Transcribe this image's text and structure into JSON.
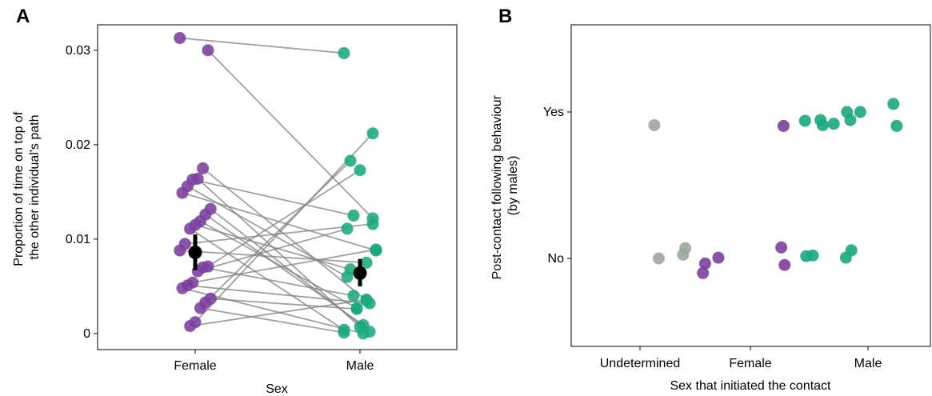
{
  "colors": {
    "Female": "#7b3f9e",
    "Male": "#1aa97f",
    "Undetermined": "#9aa89a",
    "pair_line": "#808080",
    "mean": "#000000"
  },
  "chart_data": [
    {
      "panel": "A",
      "type": "scatter",
      "xlabel": "Sex",
      "ylabel": "Proportion of time on top of the other individual's path",
      "ylabel_lines": [
        "Proportion of time on top of",
        "the other individual's path"
      ],
      "categories": [
        "Female",
        "Male"
      ],
      "ylim": [
        -0.0017,
        0.0327
      ],
      "yticks": [
        0,
        0.01,
        0.02,
        0.03
      ],
      "ytick_labels": [
        "0",
        "0.01",
        "0.02",
        "0.03"
      ],
      "grid": false,
      "pairs": [
        {
          "female": 0.0313,
          "male": 0.0297
        },
        {
          "female": 0.03,
          "male": 0.0122
        },
        {
          "female": 0.0175,
          "male": 0.0035
        },
        {
          "female": 0.0164,
          "male": 0.0007
        },
        {
          "female": 0.0163,
          "male": 0.0125
        },
        {
          "female": 0.0156,
          "male": 0.006
        },
        {
          "female": 0.0149,
          "male": 0.0088
        },
        {
          "female": 0.0132,
          "male": 0.0002
        },
        {
          "female": 0.0126,
          "male": 0.0009
        },
        {
          "female": 0.0119,
          "male": 0.0027
        },
        {
          "female": 0.0115,
          "male": 0.0068
        },
        {
          "female": 0.0111,
          "male": 0.0004
        },
        {
          "female": 0.0095,
          "male": 0.0116
        },
        {
          "female": 0.0088,
          "male": 0.0075
        },
        {
          "female": 0.0071,
          "male": 0.0173
        },
        {
          "female": 0.007,
          "male": 0.004
        },
        {
          "female": 0.0066,
          "male": 0.0111
        },
        {
          "female": 0.0054,
          "male": 0.0089
        },
        {
          "female": 0.0051,
          "male": 0.0032
        },
        {
          "female": 0.0048,
          "male": 0.0
        },
        {
          "female": 0.0037,
          "male": 0.0026
        },
        {
          "female": 0.0033,
          "male": 0.0183
        },
        {
          "female": 0.0027,
          "male": 0.0001
        },
        {
          "female": 0.0012,
          "male": 0.0212
        },
        {
          "female": 0.0008,
          "male": 0.0036
        }
      ],
      "means": [
        {
          "category": "Female",
          "mean": 0.0086,
          "low": 0.0067,
          "high": 0.0105
        },
        {
          "category": "Male",
          "mean": 0.0064,
          "low": 0.005,
          "high": 0.0079
        }
      ]
    },
    {
      "panel": "B",
      "type": "scatter",
      "xlabel": "Sex that initiated the contact",
      "ylabel": "Post-contact following behaviour (by males)",
      "ylabel_lines": [
        "Post-contact following behaviour",
        "(by males)"
      ],
      "categories": [
        "Undetermined",
        "Female",
        "Male"
      ],
      "y_categories": [
        "No",
        "Yes"
      ],
      "grid": false,
      "points": [
        {
          "category": "Undetermined",
          "response": "Yes",
          "jx": 0.13,
          "jy": -0.09
        },
        {
          "category": "Undetermined",
          "response": "No",
          "jx": 0.17,
          "jy": 0.0
        },
        {
          "category": "Undetermined",
          "response": "No",
          "jx": 0.39,
          "jy": 0.025
        },
        {
          "category": "Undetermined",
          "response": "No",
          "jx": 0.41,
          "jy": 0.07
        },
        {
          "category": "Female",
          "response": "Yes",
          "jx": 0.3,
          "jy": -0.095
        },
        {
          "category": "Female",
          "response": "No",
          "jx": -0.41,
          "jy": -0.035
        },
        {
          "category": "Female",
          "response": "No",
          "jx": -0.43,
          "jy": -0.1
        },
        {
          "category": "Female",
          "response": "No",
          "jx": -0.29,
          "jy": 0.005
        },
        {
          "category": "Female",
          "response": "No",
          "jx": 0.28,
          "jy": 0.075
        },
        {
          "category": "Female",
          "response": "No",
          "jx": 0.31,
          "jy": -0.045
        },
        {
          "category": "Male",
          "response": "Yes",
          "jx": -0.57,
          "jy": -0.06
        },
        {
          "category": "Male",
          "response": "Yes",
          "jx": -0.43,
          "jy": -0.055
        },
        {
          "category": "Male",
          "response": "Yes",
          "jx": -0.41,
          "jy": -0.09
        },
        {
          "category": "Male",
          "response": "Yes",
          "jx": -0.31,
          "jy": -0.08
        },
        {
          "category": "Male",
          "response": "Yes",
          "jx": -0.16,
          "jy": -0.055
        },
        {
          "category": "Male",
          "response": "Yes",
          "jx": -0.19,
          "jy": 0.0
        },
        {
          "category": "Male",
          "response": "Yes",
          "jx": -0.07,
          "jy": 0.0
        },
        {
          "category": "Male",
          "response": "Yes",
          "jx": 0.23,
          "jy": 0.055
        },
        {
          "category": "Male",
          "response": "Yes",
          "jx": 0.26,
          "jy": -0.095
        },
        {
          "category": "Male",
          "response": "No",
          "jx": -0.56,
          "jy": 0.015
        },
        {
          "category": "Male",
          "response": "No",
          "jx": -0.5,
          "jy": 0.02
        },
        {
          "category": "Male",
          "response": "No",
          "jx": -0.2,
          "jy": 0.005
        },
        {
          "category": "Male",
          "response": "No",
          "jx": -0.15,
          "jy": 0.055
        }
      ]
    }
  ]
}
